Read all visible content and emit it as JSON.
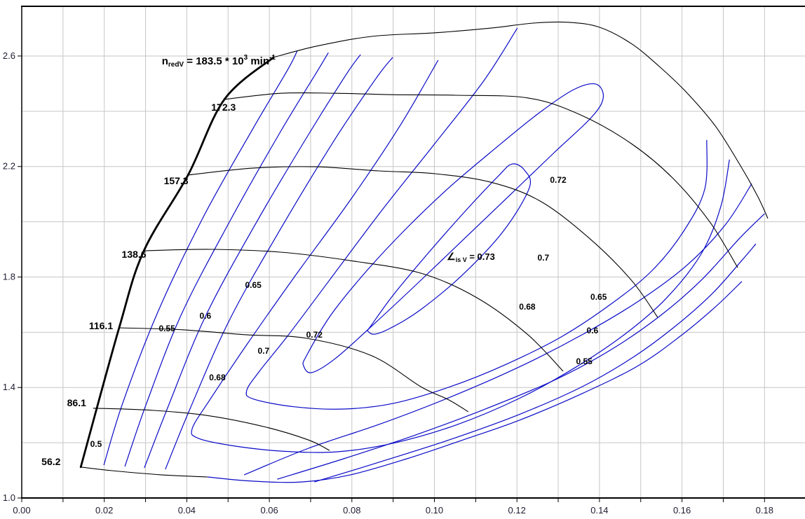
{
  "chart_data": {
    "type": "line",
    "subtype": "compressor-map-with-efficiency-contours",
    "title": "",
    "xlabel": "",
    "ylabel": "",
    "grid": true,
    "colors": {
      "background": "#ffffff",
      "grid": "#c6c6c6",
      "axis": "#000000",
      "speed_line": "#000000",
      "surge_line": "#000000",
      "contour": "#0a0ac8",
      "tick_text": "#1c1c30",
      "label_text": "#000000"
    },
    "axes": {
      "x": {
        "min": 0.0,
        "max": 0.19,
        "grid_step": 0.01,
        "label_step": 0.02,
        "tick_labels": [
          "0.00",
          "0.02",
          "0.04",
          "0.06",
          "0.08",
          "0.10",
          "0.12",
          "0.14",
          "0.16",
          "0.18"
        ]
      },
      "y": {
        "min": 1.0,
        "max": 2.78,
        "grid_step": 0.2,
        "label_step": 0.4,
        "tick_labels": [
          "1.0",
          "1.4",
          "1.8",
          "2.2",
          "2.6"
        ]
      }
    },
    "top_speed_label": {
      "prefix": "n",
      "prefix_sub": "redV",
      "equals": " = 183.5 * 10",
      "exp": "3",
      "unit": " min",
      "unit_exp": "-1",
      "x": 0.0615,
      "y": 2.57
    },
    "eta_label": {
      "symbol": "∠",
      "symbol_sub": "is V",
      "rest": " = 0.73",
      "x": 0.103,
      "y": 1.862
    },
    "surge_line": {
      "points": [
        [
          0.0143,
          1.112
        ],
        [
          0.0236,
          1.616
        ],
        [
          0.0296,
          1.895
        ],
        [
          0.0403,
          2.169
        ],
        [
          0.0491,
          2.443
        ],
        [
          0.061,
          2.595
        ]
      ]
    },
    "speed_lines": [
      {
        "value": "56.2",
        "label_x": 0.0071,
        "label_y": 1.132,
        "points": [
          [
            0.0143,
            1.112
          ],
          [
            0.0219,
            1.099
          ],
          [
            0.0338,
            1.084
          ],
          [
            0.045,
            1.076
          ]
        ]
      },
      {
        "value": "86.1",
        "label_x": 0.0133,
        "label_y": 1.345,
        "points": [
          [
            0.0173,
            1.325
          ],
          [
            0.0321,
            1.317
          ],
          [
            0.0457,
            1.297
          ],
          [
            0.0593,
            1.256
          ],
          [
            0.0695,
            1.21
          ],
          [
            0.0746,
            1.172
          ]
        ]
      },
      {
        "value": "116.1",
        "label_x": 0.0192,
        "label_y": 1.624,
        "points": [
          [
            0.0236,
            1.616
          ],
          [
            0.0389,
            1.609
          ],
          [
            0.0542,
            1.591
          ],
          [
            0.069,
            1.578
          ],
          [
            0.0848,
            1.515
          ],
          [
            0.0967,
            1.403
          ],
          [
            0.1035,
            1.355
          ],
          [
            0.1082,
            1.312
          ]
        ]
      },
      {
        "value": "138.6",
        "label_x": 0.0272,
        "label_y": 1.882,
        "points": [
          [
            0.0296,
            1.895
          ],
          [
            0.0457,
            1.9
          ],
          [
            0.0627,
            1.89
          ],
          [
            0.0797,
            1.859
          ],
          [
            0.0967,
            1.814
          ],
          [
            0.1103,
            1.725
          ],
          [
            0.1225,
            1.593
          ],
          [
            0.1312,
            1.459
          ]
        ]
      },
      {
        "value": "157.3",
        "label_x": 0.0374,
        "label_y": 2.149,
        "points": [
          [
            0.0403,
            2.169
          ],
          [
            0.0559,
            2.194
          ],
          [
            0.0712,
            2.199
          ],
          [
            0.0865,
            2.184
          ],
          [
            0.1001,
            2.174
          ],
          [
            0.1137,
            2.143
          ],
          [
            0.1256,
            2.075
          ],
          [
            0.1375,
            1.941
          ],
          [
            0.1477,
            1.789
          ],
          [
            0.1541,
            1.654
          ]
        ]
      },
      {
        "value": "172.3",
        "label_x": 0.0489,
        "label_y": 2.415,
        "points": [
          [
            0.0491,
            2.443
          ],
          [
            0.0627,
            2.465
          ],
          [
            0.0763,
            2.465
          ],
          [
            0.0899,
            2.46
          ],
          [
            0.1052,
            2.458
          ],
          [
            0.1227,
            2.448
          ],
          [
            0.1354,
            2.387
          ],
          [
            0.1477,
            2.283
          ],
          [
            0.1579,
            2.156
          ],
          [
            0.1669,
            1.996
          ],
          [
            0.1735,
            1.834
          ]
        ]
      },
      {
        "value": "183.5",
        "label_x": null,
        "label_y": null,
        "points": [
          [
            0.061,
            2.595
          ],
          [
            0.0712,
            2.635
          ],
          [
            0.0848,
            2.671
          ],
          [
            0.1001,
            2.684
          ],
          [
            0.1137,
            2.701
          ],
          [
            0.1239,
            2.719
          ],
          [
            0.1324,
            2.722
          ],
          [
            0.14,
            2.704
          ],
          [
            0.1477,
            2.645
          ],
          [
            0.1545,
            2.562
          ],
          [
            0.1613,
            2.465
          ],
          [
            0.1681,
            2.346
          ],
          [
            0.174,
            2.207
          ],
          [
            0.1783,
            2.093
          ],
          [
            0.1808,
            2.012
          ]
        ]
      }
    ],
    "efficiency_contours": [
      {
        "level": "0.5",
        "branch": "left",
        "closed": false,
        "points": [
          [
            0.0199,
            1.119
          ],
          [
            0.0245,
            1.345
          ],
          [
            0.033,
            1.674
          ],
          [
            0.044,
            2.017
          ],
          [
            0.0559,
            2.334
          ],
          [
            0.0644,
            2.549
          ],
          [
            0.0668,
            2.62
          ]
        ]
      },
      {
        "level": "0.55",
        "branch": "left",
        "closed": false,
        "points": [
          [
            0.025,
            1.114
          ],
          [
            0.0301,
            1.337
          ],
          [
            0.0386,
            1.662
          ],
          [
            0.0505,
            2.004
          ],
          [
            0.0627,
            2.326
          ],
          [
            0.0715,
            2.542
          ],
          [
            0.0743,
            2.612
          ]
        ]
      },
      {
        "level": "0.6",
        "branch": "left",
        "closed": false,
        "points": [
          [
            0.0297,
            1.109
          ],
          [
            0.0355,
            1.332
          ],
          [
            0.0445,
            1.657
          ],
          [
            0.0568,
            1.996
          ],
          [
            0.0695,
            2.316
          ],
          [
            0.0788,
            2.537
          ],
          [
            0.0821,
            2.605
          ]
        ]
      },
      {
        "level": "0.65",
        "branch": "left",
        "closed": false,
        "points": [
          [
            0.0348,
            1.104
          ],
          [
            0.0409,
            1.327
          ],
          [
            0.0505,
            1.649
          ],
          [
            0.0632,
            1.986
          ],
          [
            0.0763,
            2.308
          ],
          [
            0.0861,
            2.524
          ],
          [
            0.0899,
            2.595
          ]
        ]
      },
      {
        "level": "0.68",
        "branch": "hairpin",
        "closed": false,
        "points": [
          [
            0.1009,
            2.585
          ],
          [
            0.0916,
            2.346
          ],
          [
            0.0797,
            2.08
          ],
          [
            0.0661,
            1.801
          ],
          [
            0.0542,
            1.548
          ],
          [
            0.0457,
            1.358
          ],
          [
            0.0413,
            1.251
          ],
          [
            0.0428,
            1.216
          ],
          [
            0.0508,
            1.19
          ],
          [
            0.0627,
            1.17
          ],
          [
            0.0763,
            1.167
          ],
          [
            0.0899,
            1.198
          ],
          [
            0.1052,
            1.264
          ],
          [
            0.1205,
            1.36
          ],
          [
            0.1341,
            1.472
          ],
          [
            0.146,
            1.591
          ],
          [
            0.1562,
            1.723
          ],
          [
            0.1647,
            1.885
          ],
          [
            0.1694,
            2.055
          ],
          [
            0.1715,
            2.225
          ]
        ]
      },
      {
        "level": "0.7",
        "branch": "hairpin",
        "closed": false,
        "points": [
          [
            0.1201,
            2.701
          ],
          [
            0.112,
            2.511
          ],
          [
            0.1001,
            2.283
          ],
          [
            0.0873,
            2.042
          ],
          [
            0.0746,
            1.789
          ],
          [
            0.0644,
            1.586
          ],
          [
            0.0576,
            1.459
          ],
          [
            0.0545,
            1.388
          ],
          [
            0.0562,
            1.358
          ],
          [
            0.0661,
            1.33
          ],
          [
            0.078,
            1.322
          ],
          [
            0.0899,
            1.342
          ],
          [
            0.1035,
            1.401
          ],
          [
            0.1171,
            1.482
          ],
          [
            0.1307,
            1.583
          ],
          [
            0.1426,
            1.7
          ],
          [
            0.1528,
            1.824
          ],
          [
            0.1604,
            1.966
          ],
          [
            0.1655,
            2.118
          ],
          [
            0.166,
            2.296
          ]
        ]
      },
      {
        "level": "0.72",
        "branch": "closed-loop",
        "closed": true,
        "points": [
          [
            0.069,
            1.515
          ],
          [
            0.0749,
            1.662
          ],
          [
            0.0831,
            1.814
          ],
          [
            0.0929,
            1.971
          ],
          [
            0.1035,
            2.123
          ],
          [
            0.1147,
            2.265
          ],
          [
            0.1252,
            2.392
          ],
          [
            0.1337,
            2.478
          ],
          [
            0.1392,
            2.498
          ],
          [
            0.1409,
            2.448
          ],
          [
            0.138,
            2.377
          ],
          [
            0.129,
            2.25
          ],
          [
            0.1184,
            2.098
          ],
          [
            0.1074,
            1.941
          ],
          [
            0.0962,
            1.781
          ],
          [
            0.0853,
            1.629
          ],
          [
            0.076,
            1.505
          ],
          [
            0.0703,
            1.454
          ],
          [
            0.0683,
            1.479
          ]
        ]
      },
      {
        "level": "0.73",
        "branch": "closed-loop",
        "closed": true,
        "points": [
          [
            0.0845,
            1.621
          ],
          [
            0.0902,
            1.738
          ],
          [
            0.0987,
            1.89
          ],
          [
            0.1077,
            2.042
          ],
          [
            0.1154,
            2.164
          ],
          [
            0.1188,
            2.209
          ],
          [
            0.1218,
            2.187
          ],
          [
            0.123,
            2.123
          ],
          [
            0.1167,
            1.966
          ],
          [
            0.1069,
            1.809
          ],
          [
            0.0967,
            1.682
          ],
          [
            0.0895,
            1.616
          ],
          [
            0.0855,
            1.593
          ],
          [
            0.0838,
            1.606
          ]
        ]
      },
      {
        "level": "0.65",
        "branch": "right",
        "closed": false,
        "points": [
          [
            0.0539,
            1.084
          ],
          [
            0.0695,
            1.18
          ],
          [
            0.0865,
            1.266
          ],
          [
            0.1035,
            1.363
          ],
          [
            0.1205,
            1.474
          ],
          [
            0.1358,
            1.591
          ],
          [
            0.1494,
            1.712
          ],
          [
            0.1613,
            1.844
          ],
          [
            0.1706,
            1.991
          ],
          [
            0.1769,
            2.138
          ]
        ]
      },
      {
        "level": "0.6",
        "branch": "right",
        "closed": false,
        "points": [
          [
            0.0619,
            1.068
          ],
          [
            0.078,
            1.142
          ],
          [
            0.095,
            1.226
          ],
          [
            0.112,
            1.32
          ],
          [
            0.129,
            1.426
          ],
          [
            0.1426,
            1.535
          ],
          [
            0.1545,
            1.657
          ],
          [
            0.1647,
            1.789
          ],
          [
            0.174,
            1.941
          ],
          [
            0.18,
            2.029
          ]
        ]
      },
      {
        "level": "0.55",
        "branch": "right",
        "closed": false,
        "points": [
          [
            0.0709,
            1.058
          ],
          [
            0.0865,
            1.129
          ],
          [
            0.1035,
            1.21
          ],
          [
            0.1205,
            1.302
          ],
          [
            0.1358,
            1.403
          ],
          [
            0.1477,
            1.505
          ],
          [
            0.1579,
            1.616
          ],
          [
            0.1672,
            1.738
          ],
          [
            0.1745,
            1.86
          ],
          [
            0.1779,
            1.92
          ]
        ]
      },
      {
        "level": "0.5",
        "branch": "right",
        "closed": false,
        "points": [
          [
            0.045,
            1.076
          ],
          [
            0.0559,
            1.061
          ],
          [
            0.0678,
            1.058
          ],
          [
            0.0797,
            1.084
          ],
          [
            0.0933,
            1.142
          ],
          [
            0.1069,
            1.21
          ],
          [
            0.1205,
            1.281
          ],
          [
            0.1358,
            1.378
          ],
          [
            0.1494,
            1.479
          ],
          [
            0.1596,
            1.586
          ],
          [
            0.1681,
            1.692
          ],
          [
            0.1745,
            1.784
          ]
        ]
      }
    ],
    "efficiency_labels": [
      {
        "text": "0.5",
        "x": 0.018,
        "y": 1.195
      },
      {
        "text": "0.55",
        "x": 0.0352,
        "y": 1.614
      },
      {
        "text": "0.6",
        "x": 0.0445,
        "y": 1.659
      },
      {
        "text": "0.65",
        "x": 0.0561,
        "y": 1.771
      },
      {
        "text": "0.68",
        "x": 0.0474,
        "y": 1.436
      },
      {
        "text": "0.7",
        "x": 0.0586,
        "y": 1.532
      },
      {
        "text": "0.72",
        "x": 0.0709,
        "y": 1.591
      },
      {
        "text": "0.72",
        "x": 0.13,
        "y": 2.151
      },
      {
        "text": "0.7",
        "x": 0.1264,
        "y": 1.87
      },
      {
        "text": "0.68",
        "x": 0.1225,
        "y": 1.692
      },
      {
        "text": "0.65",
        "x": 0.1398,
        "y": 1.728
      },
      {
        "text": "0.6",
        "x": 0.1383,
        "y": 1.606
      },
      {
        "text": "0.55",
        "x": 0.1363,
        "y": 1.494
      }
    ]
  }
}
